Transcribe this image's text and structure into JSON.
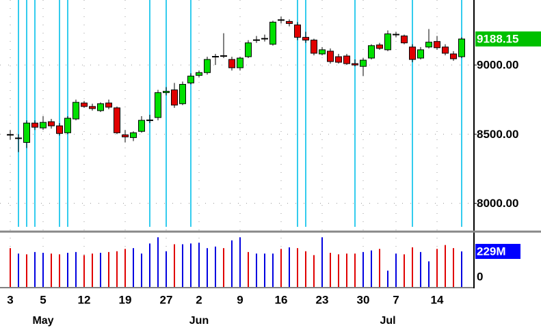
{
  "chart_data": {
    "type": "candlestick",
    "categories": [
      "3",
      null,
      null,
      null,
      "5",
      null,
      null,
      null,
      null,
      "12",
      null,
      null,
      null,
      null,
      "19",
      null,
      null,
      null,
      null,
      "27",
      null,
      null,
      null,
      "2",
      null,
      null,
      null,
      null,
      "9",
      null,
      null,
      null,
      null,
      "16",
      null,
      null,
      null,
      null,
      "23",
      null,
      null,
      null,
      null,
      "30",
      null,
      null,
      null,
      "7",
      null,
      null,
      null,
      null,
      "14",
      null,
      null,
      null
    ],
    "months": [
      null,
      null,
      null,
      null,
      "May",
      null,
      null,
      null,
      null,
      null,
      null,
      null,
      null,
      null,
      null,
      null,
      null,
      null,
      null,
      null,
      null,
      null,
      null,
      "Jun",
      null,
      null,
      null,
      null,
      null,
      null,
      null,
      null,
      null,
      null,
      null,
      null,
      null,
      null,
      null,
      null,
      null,
      null,
      null,
      null,
      null,
      null,
      "Jul",
      null,
      null,
      null,
      null,
      null,
      null,
      null,
      null,
      null
    ],
    "open": [
      8490,
      8475,
      8440,
      8580,
      8545,
      8590,
      8560,
      8510,
      8610,
      8725,
      8700,
      8670,
      8725,
      8690,
      8495,
      8475,
      8520,
      8605,
      8620,
      8800,
      8820,
      8720,
      8870,
      8925,
      8945,
      9055,
      9070,
      9040,
      8980,
      9060,
      9175,
      9185,
      9150,
      9320,
      9315,
      9290,
      9200,
      9180,
      9080,
      9100,
      9060,
      9065,
      9010,
      8990,
      9050,
      9145,
      9110,
      9215,
      9210,
      9130,
      9050,
      9130,
      9170,
      9130,
      9080,
      9060
    ],
    "high": [
      8530,
      8500,
      8600,
      8600,
      8630,
      8610,
      8580,
      8630,
      8750,
      8740,
      8720,
      8730,
      8750,
      8700,
      8530,
      8520,
      8630,
      8640,
      8820,
      8840,
      8870,
      8880,
      8940,
      8960,
      9060,
      9080,
      9230,
      9060,
      9060,
      9180,
      9210,
      9220,
      9320,
      9350,
      9330,
      9310,
      9240,
      9190,
      9130,
      9120,
      9080,
      9080,
      9040,
      9050,
      9150,
      9160,
      9250,
      9240,
      9220,
      9150,
      9130,
      9260,
      9210,
      9150,
      9100,
      9200
    ],
    "low": [
      8460,
      8370,
      8400,
      8530,
      8530,
      8540,
      8490,
      8500,
      8600,
      8690,
      8670,
      8660,
      8680,
      8500,
      8440,
      8450,
      8510,
      8580,
      8600,
      8780,
      8690,
      8710,
      8860,
      8910,
      8930,
      9000,
      9050,
      8960,
      8960,
      9050,
      9160,
      9170,
      9140,
      9300,
      9280,
      9180,
      9160,
      9070,
      9070,
      9010,
      9010,
      9000,
      8990,
      8920,
      9040,
      9110,
      9100,
      9200,
      9150,
      9020,
      9040,
      9120,
      9110,
      9070,
      9030,
      9050
    ],
    "close": [
      8495,
      8470,
      8580,
      8550,
      8585,
      8560,
      8505,
      8615,
      8730,
      8700,
      8685,
      8720,
      8695,
      8510,
      8480,
      8510,
      8600,
      8600,
      8800,
      8810,
      8710,
      8860,
      8920,
      8945,
      9040,
      9060,
      9065,
      8980,
      9050,
      9160,
      9180,
      9190,
      9310,
      9325,
      9300,
      9200,
      9180,
      9085,
      9110,
      9025,
      9020,
      9010,
      9000,
      9035,
      9140,
      9120,
      9225,
      9220,
      9160,
      9040,
      9110,
      9165,
      9125,
      9085,
      9045,
      9188.15
    ],
    "up_color": "#00e000",
    "down_color": "#e00000",
    "volume": {
      "values": [
        250,
        215,
        210,
        225,
        220,
        215,
        210,
        220,
        225,
        205,
        215,
        220,
        225,
        230,
        245,
        250,
        215,
        280,
        320,
        230,
        275,
        275,
        280,
        285,
        250,
        260,
        250,
        300,
        320,
        225,
        215,
        215,
        215,
        245,
        255,
        250,
        230,
        205,
        320,
        220,
        210,
        215,
        215,
        225,
        235,
        245,
        105,
        215,
        210,
        255,
        225,
        165,
        245,
        270,
        250,
        229
      ],
      "value_labels": [
        null,
        null,
        null,
        null,
        null,
        null,
        null,
        null,
        null,
        null,
        null,
        null,
        null,
        null,
        null,
        null,
        null,
        null,
        null,
        null,
        null,
        null,
        null,
        null,
        null,
        null,
        null,
        null,
        null,
        null,
        null,
        null,
        null,
        null,
        null,
        null,
        null,
        null,
        null,
        null,
        null,
        null,
        null,
        null,
        null,
        null,
        null,
        null,
        null,
        null,
        null,
        null,
        null,
        null,
        null,
        "229M"
      ],
      "colors": [
        "#e00000",
        "#0000e0",
        "#e00000",
        "#0000e0",
        "#0000e0",
        "#e00000",
        "#e00000",
        "#0000e0",
        "#0000e0",
        "#e00000",
        "#e00000",
        "#0000e0",
        "#e00000",
        "#e00000",
        "#e00000",
        "#0000e0",
        "#0000e0",
        "#0000e0",
        "#0000e0",
        "#0000e0",
        "#e00000",
        "#0000e0",
        "#0000e0",
        "#0000e0",
        "#0000e0",
        "#0000e0",
        "#e00000",
        "#0000e0",
        "#0000e0",
        "#e00000",
        "#0000e0",
        "#0000e0",
        "#0000e0",
        "#e00000",
        "#0000e0",
        "#e00000",
        "#e00000",
        "#e00000",
        "#0000e0",
        "#e00000",
        "#e00000",
        "#e00000",
        "#e00000",
        "#0000e0",
        "#0000e0",
        "#e00000",
        "#0000e0",
        "#0000e0",
        "#e00000",
        "#e00000",
        "#0000e0",
        "#0000e0",
        "#e00000",
        "#e00000",
        "#e00000",
        "#0000e0"
      ],
      "label_color": "#0000ff"
    },
    "last_label_color": "#00c000",
    "ylim": [
      7800,
      9470
    ],
    "yticks": [
      {
        "value": 8000,
        "label": "8000.00"
      },
      {
        "value": 8500,
        "label": "8500.00"
      },
      {
        "value": 9000,
        "label": "9000.00"
      }
    ],
    "y2lim": [
      0,
      330
    ],
    "y2ticks": [
      0
    ],
    "marker_indices": [
      1,
      2,
      3,
      6,
      7,
      17,
      19,
      22,
      35,
      36,
      42,
      49,
      55
    ],
    "marker_color": "#33ccee",
    "grid": true
  }
}
